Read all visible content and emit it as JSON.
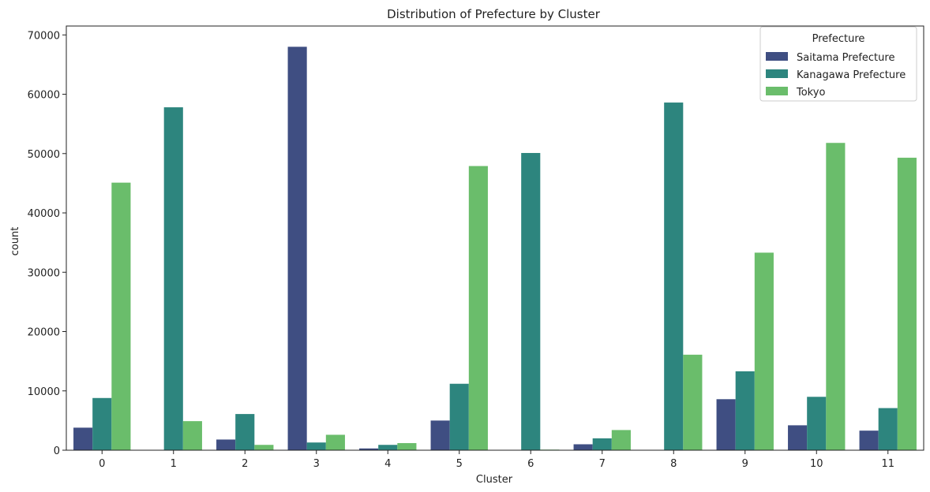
{
  "chart_data": {
    "type": "bar",
    "title": "Distribution of Prefecture by Cluster",
    "xlabel": "Cluster",
    "ylabel": "count",
    "ylim": [
      0,
      71500
    ],
    "yticks": [
      0,
      10000,
      20000,
      30000,
      40000,
      50000,
      60000,
      70000
    ],
    "categories": [
      "0",
      "1",
      "2",
      "3",
      "4",
      "5",
      "6",
      "7",
      "8",
      "9",
      "10",
      "11"
    ],
    "legend_title": "Prefecture",
    "legend_position": "top-right",
    "grid": false,
    "series": [
      {
        "name": "Saitama Prefecture",
        "color": "#3f4e82",
        "values": [
          3800,
          0,
          1800,
          68000,
          300,
          5000,
          0,
          1000,
          0,
          8600,
          4200,
          3300
        ]
      },
      {
        "name": "Kanagawa Prefecture",
        "color": "#2d857e",
        "values": [
          8800,
          57800,
          6100,
          1300,
          900,
          11200,
          50100,
          2000,
          58600,
          13300,
          9000,
          7100
        ]
      },
      {
        "name": "Tokyo",
        "color": "#6abd6b",
        "values": [
          45100,
          4900,
          900,
          2600,
          1200,
          47900,
          100,
          3400,
          16100,
          33300,
          51800,
          49300
        ]
      }
    ]
  }
}
